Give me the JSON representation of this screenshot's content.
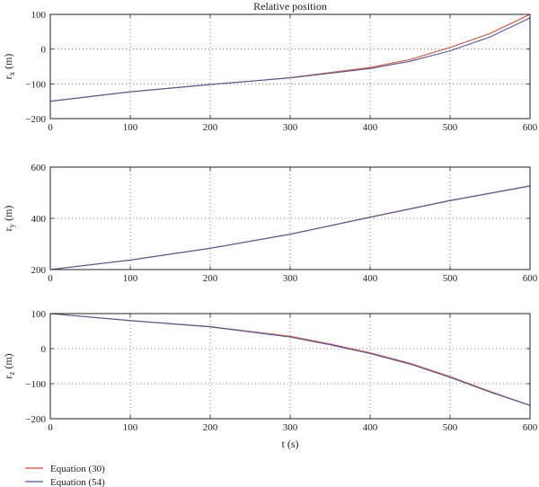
{
  "chart_data": [
    {
      "type": "line",
      "title": "Relative position",
      "ylabel": "r",
      "ylabel_sub": "x",
      "ylabel_unit": "(m)",
      "xlabel": "",
      "xlim": [
        0,
        600
      ],
      "ylim": [
        -200,
        100
      ],
      "xticks": [
        "0",
        "100",
        "200",
        "300",
        "400",
        "500",
        "600"
      ],
      "yticks": [
        "-200",
        "-100",
        "0",
        "100"
      ],
      "grid": true,
      "series": [
        {
          "name": "Equation (30)",
          "color": "#e8452f",
          "x": [
            0,
            100,
            200,
            300,
            400,
            450,
            500,
            550,
            600
          ],
          "y": [
            -150,
            -123,
            -102,
            -82,
            -53,
            -30,
            5,
            45,
            100
          ]
        },
        {
          "name": "Equation (54)",
          "color": "#4b5aa6",
          "x": [
            0,
            100,
            200,
            300,
            400,
            450,
            500,
            550,
            600
          ],
          "y": [
            -150,
            -123,
            -102,
            -83,
            -56,
            -35,
            -5,
            35,
            90
          ]
        }
      ]
    },
    {
      "type": "line",
      "title": "",
      "ylabel": "r",
      "ylabel_sub": "y",
      "ylabel_unit": "(m)",
      "xlabel": "",
      "xlim": [
        0,
        600
      ],
      "ylim": [
        200,
        600
      ],
      "xticks": [
        "0",
        "100",
        "200",
        "300",
        "400",
        "500",
        "600"
      ],
      "yticks": [
        "200",
        "400",
        "600"
      ],
      "grid": true,
      "series": [
        {
          "name": "Equation (30)",
          "color": "#e8452f",
          "x": [
            0,
            100,
            200,
            300,
            400,
            500,
            600
          ],
          "y": [
            200,
            237,
            283,
            338,
            405,
            470,
            527
          ]
        },
        {
          "name": "Equation (54)",
          "color": "#4b5aa6",
          "x": [
            0,
            100,
            200,
            300,
            400,
            500,
            600
          ],
          "y": [
            200,
            237,
            283,
            338,
            404,
            469,
            526
          ]
        }
      ]
    },
    {
      "type": "line",
      "title": "",
      "ylabel": "r",
      "ylabel_sub": "z",
      "ylabel_unit": "(m)",
      "xlabel": "t (s)",
      "xlim": [
        0,
        600
      ],
      "ylim": [
        -200,
        100
      ],
      "xticks": [
        "0",
        "100",
        "200",
        "300",
        "400",
        "500",
        "600"
      ],
      "yticks": [
        "-200",
        "-100",
        "0",
        "100"
      ],
      "grid": true,
      "series": [
        {
          "name": "Equation (30)",
          "color": "#e8452f",
          "x": [
            0,
            100,
            200,
            300,
            350,
            400,
            450,
            500,
            550,
            600
          ],
          "y": [
            100,
            80,
            63,
            35,
            13,
            -12,
            -42,
            -80,
            -122,
            -162
          ]
        },
        {
          "name": "Equation (54)",
          "color": "#4b5aa6",
          "x": [
            0,
            100,
            200,
            300,
            350,
            400,
            450,
            500,
            550,
            600
          ],
          "y": [
            100,
            80,
            62,
            33,
            11,
            -14,
            -44,
            -82,
            -124,
            -162
          ]
        }
      ]
    }
  ],
  "legend": {
    "placement": "bottom-left",
    "items": [
      {
        "label": "Equation (30)",
        "color": "#e8452f"
      },
      {
        "label": "Equation (54)",
        "color": "#4b5aa6"
      }
    ]
  }
}
